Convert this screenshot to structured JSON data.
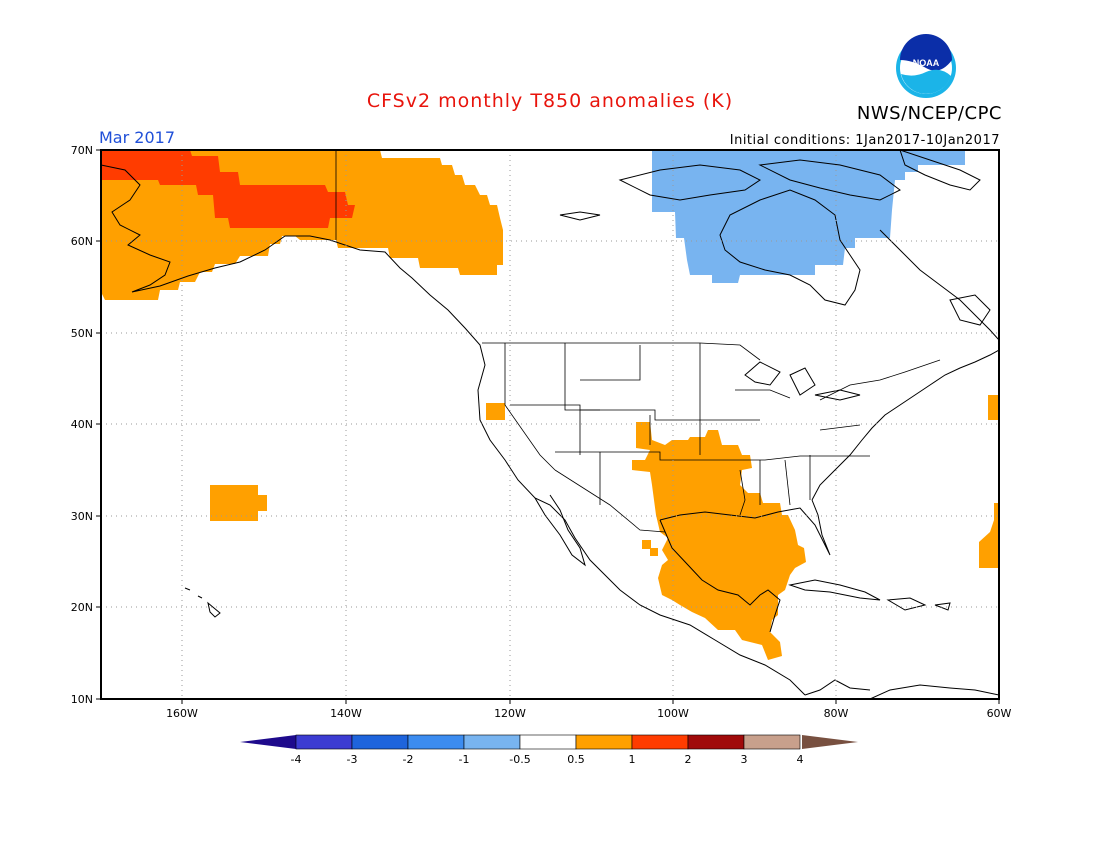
{
  "title": "CFSv2 monthly T850 anomalies (K)",
  "org": "NWS/NCEP/CPC",
  "logo_text": "NOAA",
  "period": "Mar 2017",
  "initial_conditions": "Initial conditions: 1Jan2017-10Jan2017",
  "map": {
    "lon_range": [
      -170,
      -60
    ],
    "lat_range": [
      10,
      70
    ],
    "lat_ticks": [
      "10N",
      "20N",
      "30N",
      "40N",
      "50N",
      "60N",
      "70N"
    ],
    "lon_ticks": [
      "160W",
      "140W",
      "120W",
      "100W",
      "80W",
      "60W"
    ],
    "grid": "dotted"
  },
  "colorbar": {
    "labels": [
      "-4",
      "-3",
      "-2",
      "-1",
      "-0.5",
      "0.5",
      "1",
      "2",
      "3",
      "4"
    ],
    "colors": [
      "#1e0a8c",
      "#3c3cd2",
      "#1e64dc",
      "#3c8cf0",
      "#78b4f0",
      "#ffffff",
      "#ffa000",
      "#ff3c00",
      "#a00a0a",
      "#c8a08c",
      "#785040"
    ]
  },
  "anomaly_regions": [
    {
      "name": "alaska-warm",
      "level": "0.5-1",
      "color": "#ffa000"
    },
    {
      "name": "alaska-strong-warm",
      "level": "1-2",
      "color": "#ff3c00"
    },
    {
      "name": "hudson-cold",
      "level": "-1 to -0.5",
      "color": "#78b4f0"
    },
    {
      "name": "texas-mexico-warm",
      "level": "0.5-1",
      "color": "#ffa000"
    },
    {
      "name": "hawaii-warm",
      "level": "0.5-1",
      "color": "#ffa000"
    },
    {
      "name": "oregon-warm",
      "level": "0.5-1",
      "color": "#ffa000"
    },
    {
      "name": "atlantic-warm",
      "level": "0.5-1",
      "color": "#ffa000"
    }
  ]
}
